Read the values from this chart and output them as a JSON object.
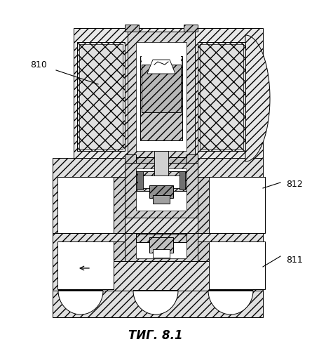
{
  "title": "ΤИГ. 8.1",
  "bg_color": "#ffffff",
  "line_color": "#000000",
  "title_fontsize": 12,
  "label_fontsize": 9,
  "hatch_diag": "///",
  "hatch_cross": "xxx"
}
